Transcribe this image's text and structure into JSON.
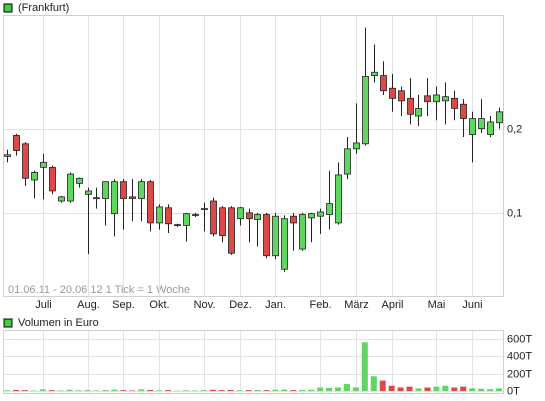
{
  "chart_data": [
    {
      "type": "candlestick",
      "legend": "(Frankfurt)",
      "legend_color": "#44cc44",
      "annotation": "01.06.11 - 20.06.12   1 Tick = 1 Woche",
      "up_color": "#5fd65f",
      "down_color": "#e04848",
      "grid": true,
      "categories": [
        null,
        null,
        null,
        null,
        "Juli",
        null,
        null,
        null,
        null,
        "Aug.",
        null,
        null,
        null,
        "Sep.",
        null,
        null,
        null,
        "Okt.",
        null,
        null,
        null,
        null,
        "Nov.",
        null,
        null,
        null,
        "Dez.",
        null,
        null,
        null,
        "Jan.",
        null,
        null,
        null,
        null,
        "Feb.",
        null,
        null,
        null,
        "März",
        null,
        null,
        null,
        "April",
        null,
        null,
        null,
        null,
        "Mai",
        null,
        null,
        null,
        "Juni",
        null,
        null,
        null
      ],
      "open": [
        0.167,
        0.192,
        0.182,
        0.139,
        0.154,
        0.154,
        0.114,
        0.114,
        0.135,
        0.122,
        0.117,
        0.117,
        0.099,
        0.137,
        0.119,
        0.117,
        0.137,
        0.088,
        0.106,
        0.085,
        0.085,
        0.097,
        0.104,
        0.114,
        0.106,
        0.106,
        0.093,
        0.1,
        0.092,
        0.098,
        0.049,
        0.033,
        0.096,
        0.057,
        0.094,
        0.096,
        0.098,
        0.088,
        0.146,
        0.176,
        0.182,
        0.263,
        0.263,
        0.248,
        0.245,
        0.236,
        0.215,
        0.239,
        0.232,
        0.233,
        0.236,
        0.229,
        0.193,
        0.2,
        0.193,
        0.207
      ],
      "high": [
        0.175,
        0.194,
        0.184,
        0.15,
        0.17,
        0.156,
        0.12,
        0.148,
        0.142,
        0.13,
        0.13,
        0.137,
        0.14,
        0.14,
        0.14,
        0.14,
        0.139,
        0.11,
        0.11,
        0.087,
        0.1,
        0.1,
        0.112,
        0.118,
        0.108,
        0.108,
        0.107,
        0.105,
        0.1,
        0.1,
        0.1,
        0.097,
        0.1,
        0.1,
        0.1,
        0.105,
        0.15,
        0.16,
        0.19,
        0.23,
        0.32,
        0.3,
        0.28,
        0.265,
        0.25,
        0.26,
        0.24,
        0.26,
        0.25,
        0.255,
        0.245,
        0.235,
        0.22,
        0.235,
        0.215,
        0.225
      ],
      "low": [
        0.16,
        0.168,
        0.132,
        0.117,
        0.116,
        0.122,
        0.112,
        0.112,
        0.13,
        0.051,
        0.105,
        0.085,
        0.072,
        0.08,
        0.09,
        0.09,
        0.078,
        0.08,
        0.076,
        0.083,
        0.066,
        0.095,
        0.078,
        0.072,
        0.065,
        0.05,
        0.085,
        0.065,
        0.06,
        0.046,
        0.045,
        0.03,
        0.055,
        0.055,
        0.065,
        0.075,
        0.08,
        0.086,
        0.14,
        0.17,
        0.18,
        0.255,
        0.24,
        0.22,
        0.215,
        0.205,
        0.203,
        0.215,
        0.21,
        0.205,
        0.21,
        0.19,
        0.16,
        0.195,
        0.19,
        0.2
      ],
      "close": [
        0.169,
        0.174,
        0.141,
        0.148,
        0.16,
        0.126,
        0.119,
        0.146,
        0.141,
        0.126,
        0.118,
        0.137,
        0.137,
        0.117,
        0.117,
        0.137,
        0.088,
        0.107,
        0.087,
        0.086,
        0.099,
        0.098,
        0.105,
        0.075,
        0.073,
        0.052,
        0.106,
        0.093,
        0.098,
        0.049,
        0.096,
        0.093,
        0.088,
        0.098,
        0.099,
        0.101,
        0.111,
        0.145,
        0.176,
        0.183,
        0.262,
        0.267,
        0.245,
        0.236,
        0.233,
        0.217,
        0.224,
        0.232,
        0.24,
        0.238,
        0.224,
        0.212,
        0.212,
        0.212,
        0.208,
        0.22
      ],
      "ylim": [
        0,
        0.335
      ],
      "yticks": [
        {
          "value": 0.1,
          "label": "0,1"
        },
        {
          "value": 0.2,
          "label": "0,2"
        }
      ]
    },
    {
      "type": "bar",
      "legend": "Volumen in Euro",
      "legend_color": "#44cc44",
      "values": [
        8,
        12,
        10,
        6,
        18,
        10,
        6,
        14,
        8,
        10,
        6,
        12,
        16,
        10,
        6,
        18,
        12,
        8,
        10,
        4,
        8,
        6,
        10,
        14,
        10,
        12,
        8,
        10,
        12,
        10,
        14,
        16,
        10,
        12,
        14,
        40,
        35,
        40,
        80,
        40,
        560,
        170,
        120,
        60,
        40,
        50,
        30,
        40,
        50,
        60,
        40,
        50,
        30,
        25,
        20,
        30
      ],
      "ylim": [
        0,
        690
      ],
      "yticks": [
        {
          "value": 0,
          "label": "0T"
        },
        {
          "value": 200,
          "label": "200T"
        },
        {
          "value": 400,
          "label": "400T"
        },
        {
          "value": 600,
          "label": "600T"
        }
      ]
    }
  ]
}
